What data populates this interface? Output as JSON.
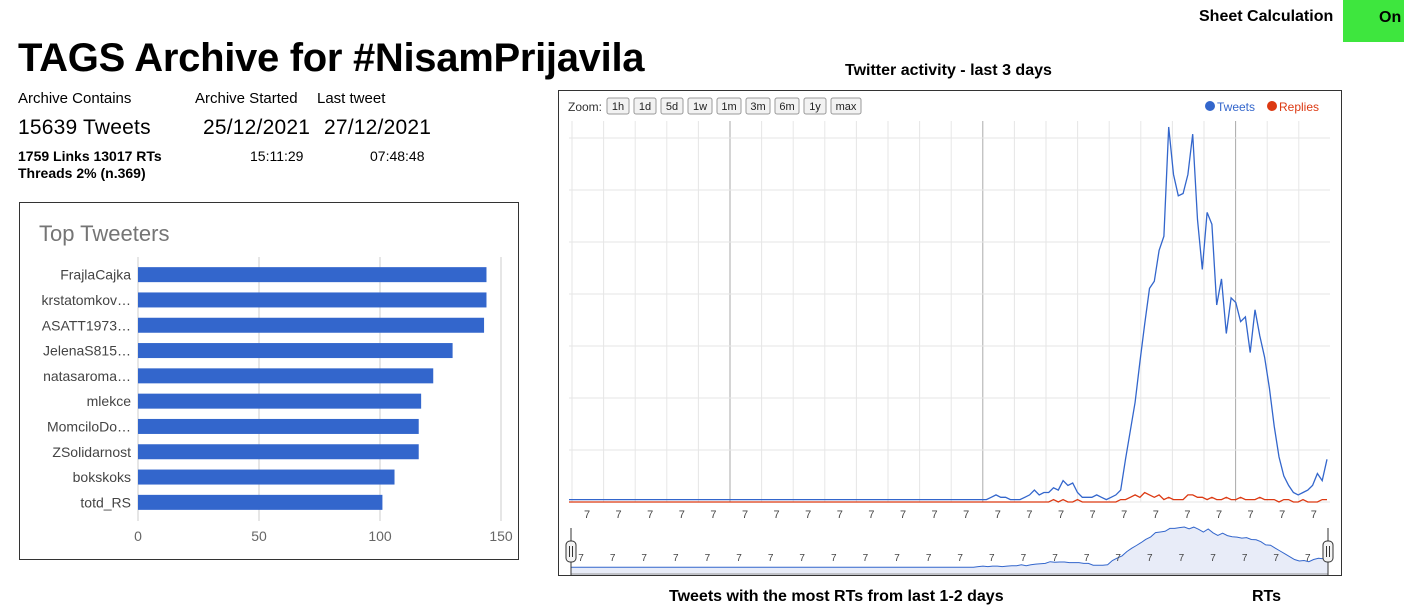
{
  "header": {
    "title": "TAGS Archive for #NisamPrijavila",
    "sheet_calc_label": "Sheet Calculation",
    "sheet_calc_state": "On",
    "sheet_calc_color": "#3ee63e"
  },
  "stats": {
    "contains_label": "Archive Contains",
    "contains_value": "15639 Tweets",
    "started_label": "Archive Started",
    "started_date": "25/12/2021",
    "started_time": "15:11:29",
    "last_label": "Last tweet",
    "last_date": "27/12/2021",
    "last_time": "07:48:48",
    "links_line": "1759 Links 13017 RTs",
    "threads_line": "Threads 2% (n.369)"
  },
  "chart_data": [
    {
      "type": "bar",
      "orientation": "horizontal",
      "title": "Top Tweeters",
      "categories": [
        "FrajlaCajka",
        "krstatomkov…",
        "ASATT1973…",
        "JelenaS815…",
        "natasaroma…",
        "mlekce",
        "MomciloDo…",
        "ZSolidarnost",
        "bokskoks",
        "totd_RS"
      ],
      "values": [
        144,
        144,
        143,
        130,
        122,
        117,
        116,
        116,
        106,
        101
      ],
      "xticks": [
        "0",
        "50",
        "100",
        "150"
      ],
      "xlim": [
        0,
        150
      ],
      "color": "#3366cc",
      "grid": true
    },
    {
      "type": "line",
      "title": "Twitter activity - last 3 days",
      "zoom_label": "Zoom:",
      "zoom_buttons": [
        "1h",
        "1d",
        "5d",
        "1w",
        "1m",
        "3m",
        "6m",
        "1y",
        "max"
      ],
      "legend_position": "top-right",
      "x_tick_label": "7",
      "series": [
        {
          "name": "Tweets",
          "color": "#3366cc",
          "values": [
            1,
            1,
            1,
            1,
            1,
            1,
            1,
            1,
            1,
            1,
            1,
            1,
            1,
            1,
            1,
            1,
            1,
            1,
            1,
            1,
            1,
            1,
            1,
            1,
            1,
            1,
            1,
            1,
            1,
            1,
            1,
            1,
            1,
            1,
            1,
            1,
            1,
            1,
            1,
            1,
            1,
            1,
            1,
            1,
            1,
            1,
            1,
            1,
            1,
            1,
            1,
            1,
            1,
            1,
            1,
            1,
            1,
            1,
            1,
            1,
            1,
            1,
            1,
            1,
            1,
            1,
            1,
            1,
            1,
            1,
            1,
            1,
            1,
            1,
            1,
            1,
            1,
            1,
            1,
            1,
            1,
            1,
            1,
            1,
            1,
            1,
            1,
            1,
            2,
            3,
            2,
            2,
            1,
            1,
            1,
            2,
            3,
            5,
            3,
            4,
            4,
            6,
            5,
            9,
            7,
            8,
            4,
            2,
            2,
            2,
            3,
            2,
            1,
            2,
            3,
            5,
            18,
            30,
            42,
            59,
            75,
            90,
            93,
            106,
            112,
            158,
            138,
            129,
            130,
            138,
            155,
            119,
            98,
            122,
            117,
            83,
            94,
            71,
            86,
            84,
            76,
            78,
            63,
            81,
            70,
            61,
            48,
            32,
            19,
            11,
            7,
            4,
            3,
            4,
            5,
            7,
            12,
            9,
            18
          ]
        },
        {
          "name": "Replies",
          "color": "#dc3912",
          "values": [
            0,
            0,
            0,
            0,
            0,
            0,
            0,
            0,
            0,
            0,
            0,
            0,
            0,
            0,
            0,
            0,
            0,
            0,
            0,
            0,
            0,
            0,
            0,
            0,
            0,
            0,
            0,
            0,
            0,
            0,
            0,
            0,
            0,
            0,
            0,
            0,
            0,
            0,
            0,
            0,
            0,
            0,
            0,
            0,
            0,
            0,
            0,
            0,
            0,
            0,
            0,
            0,
            0,
            0,
            0,
            0,
            0,
            0,
            0,
            0,
            0,
            0,
            0,
            0,
            0,
            0,
            0,
            0,
            0,
            0,
            0,
            0,
            0,
            0,
            0,
            0,
            0,
            0,
            0,
            0,
            0,
            0,
            0,
            0,
            0,
            0,
            0,
            0,
            0,
            0,
            0,
            0,
            0,
            0,
            0,
            0,
            0,
            0,
            0,
            0,
            0,
            1,
            0,
            1,
            0,
            0,
            1,
            0,
            0,
            0,
            0,
            0,
            0,
            0,
            0,
            1,
            1,
            2,
            3,
            2,
            4,
            3,
            2,
            3,
            1,
            2,
            1,
            1,
            1,
            3,
            3,
            2,
            2,
            1,
            2,
            1,
            1,
            2,
            1,
            1,
            2,
            1,
            1,
            1,
            2,
            1,
            1,
            1,
            0,
            1,
            1,
            0,
            0,
            1,
            0,
            0,
            0,
            1,
            1
          ]
        }
      ]
    }
  ],
  "footer": {
    "rts_title": "Tweets with the most RTs from last 1-2 days",
    "rts_label": "RTs"
  }
}
